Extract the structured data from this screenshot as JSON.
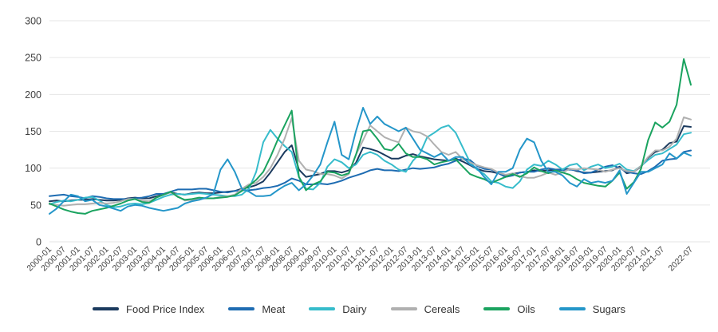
{
  "chart_data": {
    "type": "line",
    "title": "",
    "xlabel": "",
    "ylabel": "",
    "ylim": [
      0,
      300
    ],
    "y_ticks": [
      0,
      50,
      100,
      150,
      200,
      250,
      300
    ],
    "grid": "horizontal",
    "gridline_color": "#e6e6e6",
    "background_color": "#ffffff",
    "axis_text_color": "#3f3f3f",
    "legend_position": "bottom-center",
    "x_tick_labels": [
      "2000-01",
      "2000-07",
      "2001-01",
      "2001-07",
      "2002-01",
      "2002-07",
      "2003-01",
      "2003-07",
      "2004-01",
      "2004-07",
      "2005-01",
      "2005-07",
      "2006-01",
      "2006-07",
      "2007-01",
      "2007-07",
      "2008-01",
      "2008-07",
      "2009-01",
      "2009-07",
      "2010-01",
      "2010-07",
      "2011-01",
      "2011-07",
      "2012-01",
      "2012-07",
      "2013-01",
      "2013-07",
      "2014-01",
      "2014-07",
      "2015-01",
      "2015-07",
      "2016-01",
      "2016-07",
      "2017-01",
      "2017-07",
      "2018-01",
      "2018-07",
      "2019-01",
      "2019-07",
      "2020-01",
      "2020-07",
      "2021-01",
      "2021-07",
      "2022-07"
    ],
    "categories": [
      "2000-01",
      "2000-04",
      "2000-07",
      "2000-10",
      "2001-01",
      "2001-04",
      "2001-07",
      "2001-10",
      "2002-01",
      "2002-04",
      "2002-07",
      "2002-10",
      "2003-01",
      "2003-04",
      "2003-07",
      "2003-10",
      "2004-01",
      "2004-04",
      "2004-07",
      "2004-10",
      "2005-01",
      "2005-04",
      "2005-07",
      "2005-10",
      "2006-01",
      "2006-04",
      "2006-07",
      "2006-10",
      "2007-01",
      "2007-04",
      "2007-07",
      "2007-10",
      "2008-01",
      "2008-04",
      "2008-07",
      "2008-10",
      "2009-01",
      "2009-04",
      "2009-07",
      "2009-10",
      "2010-01",
      "2010-04",
      "2010-07",
      "2010-10",
      "2011-01",
      "2011-04",
      "2011-07",
      "2011-10",
      "2012-01",
      "2012-04",
      "2012-07",
      "2012-10",
      "2013-01",
      "2013-04",
      "2013-07",
      "2013-10",
      "2014-01",
      "2014-04",
      "2014-07",
      "2014-10",
      "2015-01",
      "2015-04",
      "2015-07",
      "2015-10",
      "2016-01",
      "2016-04",
      "2016-07",
      "2016-10",
      "2017-01",
      "2017-04",
      "2017-07",
      "2017-10",
      "2018-01",
      "2018-04",
      "2018-07",
      "2018-10",
      "2019-01",
      "2019-04",
      "2019-07",
      "2019-10",
      "2020-01",
      "2020-04",
      "2020-07",
      "2020-10",
      "2021-01",
      "2021-04",
      "2021-07",
      "2021-10",
      "2022-01",
      "2022-04",
      "2022-07"
    ],
    "series": [
      {
        "name": "Food Price Index",
        "color": "#1b3a5e",
        "values": [
          55,
          56,
          55,
          56,
          57,
          57,
          58,
          57,
          56,
          56,
          57,
          59,
          60,
          59,
          59,
          62,
          64,
          67,
          65,
          64,
          66,
          67,
          66,
          66,
          67,
          68,
          69,
          72,
          74,
          77,
          82,
          94,
          108,
          122,
          131,
          98,
          88,
          90,
          92,
          96,
          96,
          94,
          97,
          107,
          128,
          126,
          123,
          118,
          113,
          113,
          117,
          119,
          116,
          114,
          112,
          111,
          110,
          113,
          109,
          104,
          99,
          96,
          95,
          93,
          89,
          92,
          94,
          95,
          97,
          96,
          97,
          98,
          98,
          99,
          96,
          94,
          94,
          95,
          96,
          97,
          102,
          93,
          95,
          102,
          114,
          122,
          125,
          134,
          136,
          157,
          156
        ]
      },
      {
        "name": "Meat",
        "color": "#1e6cb2",
        "values": [
          62,
          63,
          64,
          62,
          61,
          59,
          62,
          61,
          59,
          58,
          58,
          58,
          59,
          60,
          62,
          65,
          65,
          68,
          71,
          71,
          71,
          72,
          72,
          70,
          68,
          67,
          69,
          70,
          70,
          71,
          73,
          74,
          76,
          80,
          86,
          83,
          78,
          78,
          79,
          78,
          80,
          83,
          87,
          90,
          93,
          97,
          99,
          97,
          97,
          96,
          98,
          100,
          99,
          100,
          101,
          104,
          106,
          110,
          113,
          111,
          103,
          99,
          98,
          93,
          88,
          90,
          94,
          95,
          95,
          98,
          100,
          98,
          97,
          98,
          97,
          93,
          94,
          98,
          102,
          104,
          100,
          95,
          93,
          92,
          96,
          102,
          110,
          112,
          113,
          122,
          124
        ]
      },
      {
        "name": "Dairy",
        "color": "#36bccb",
        "values": [
          51,
          54,
          56,
          55,
          57,
          60,
          61,
          56,
          50,
          47,
          48,
          51,
          52,
          51,
          53,
          57,
          61,
          64,
          65,
          64,
          65,
          66,
          65,
          64,
          63,
          62,
          62,
          64,
          72,
          95,
          135,
          152,
          140,
          130,
          122,
          88,
          72,
          71,
          80,
          102,
          112,
          108,
          100,
          105,
          118,
          122,
          118,
          110,
          105,
          98,
          95,
          110,
          120,
          142,
          148,
          155,
          158,
          148,
          128,
          108,
          98,
          92,
          82,
          80,
          75,
          73,
          82,
          98,
          105,
          103,
          110,
          105,
          98,
          104,
          106,
          97,
          102,
          105,
          100,
          102,
          106,
          98,
          96,
          103,
          111,
          118,
          120,
          126,
          132,
          146,
          148
        ]
      },
      {
        "name": "Cereals",
        "color": "#b0b0b0",
        "values": [
          51,
          50,
          49,
          50,
          51,
          51,
          52,
          53,
          52,
          53,
          55,
          58,
          58,
          56,
          55,
          60,
          64,
          67,
          62,
          56,
          57,
          58,
          59,
          59,
          61,
          62,
          64,
          72,
          78,
          80,
          88,
          100,
          118,
          140,
          168,
          110,
          98,
          96,
          92,
          92,
          90,
          86,
          92,
          118,
          138,
          158,
          150,
          142,
          138,
          135,
          155,
          150,
          148,
          143,
          132,
          122,
          118,
          122,
          112,
          108,
          104,
          101,
          99,
          94,
          91,
          93,
          89,
          87,
          87,
          90,
          94,
          91,
          94,
          99,
          98,
          100,
          99,
          98,
          95,
          98,
          100,
          96,
          95,
          103,
          115,
          124,
          124,
          129,
          140,
          169,
          166
        ]
      },
      {
        "name": "Oils",
        "color": "#1aa35f",
        "values": [
          52,
          48,
          44,
          41,
          39,
          38,
          42,
          44,
          46,
          49,
          52,
          56,
          58,
          54,
          53,
          60,
          64,
          68,
          61,
          57,
          58,
          60,
          59,
          59,
          60,
          61,
          63,
          69,
          76,
          84,
          95,
          115,
          138,
          158,
          178,
          88,
          70,
          78,
          82,
          95,
          94,
          90,
          93,
          118,
          150,
          152,
          140,
          126,
          124,
          133,
          120,
          115,
          115,
          112,
          105,
          108,
          110,
          112,
          102,
          92,
          88,
          85,
          80,
          84,
          88,
          92,
          88,
          93,
          101,
          96,
          93,
          97,
          94,
          91,
          85,
          80,
          78,
          76,
          75,
          83,
          94,
          72,
          81,
          99,
          138,
          162,
          155,
          163,
          186,
          248,
          213
        ]
      },
      {
        "name": "Sugars",
        "color": "#2496c9",
        "values": [
          38,
          45,
          55,
          64,
          62,
          55,
          57,
          50,
          48,
          45,
          42,
          48,
          50,
          49,
          46,
          44,
          42,
          44,
          46,
          52,
          55,
          57,
          60,
          65,
          98,
          112,
          95,
          72,
          68,
          62,
          62,
          63,
          70,
          76,
          80,
          70,
          78,
          90,
          105,
          135,
          163,
          118,
          112,
          150,
          182,
          160,
          170,
          160,
          155,
          150,
          155,
          140,
          125,
          120,
          115,
          120,
          110,
          115,
          115,
          105,
          100,
          88,
          78,
          95,
          95,
          100,
          125,
          140,
          135,
          110,
          95,
          95,
          90,
          80,
          75,
          85,
          80,
          82,
          80,
          83,
          97,
          65,
          80,
          95,
          95,
          100,
          105,
          120,
          113,
          121,
          117
        ]
      }
    ]
  }
}
